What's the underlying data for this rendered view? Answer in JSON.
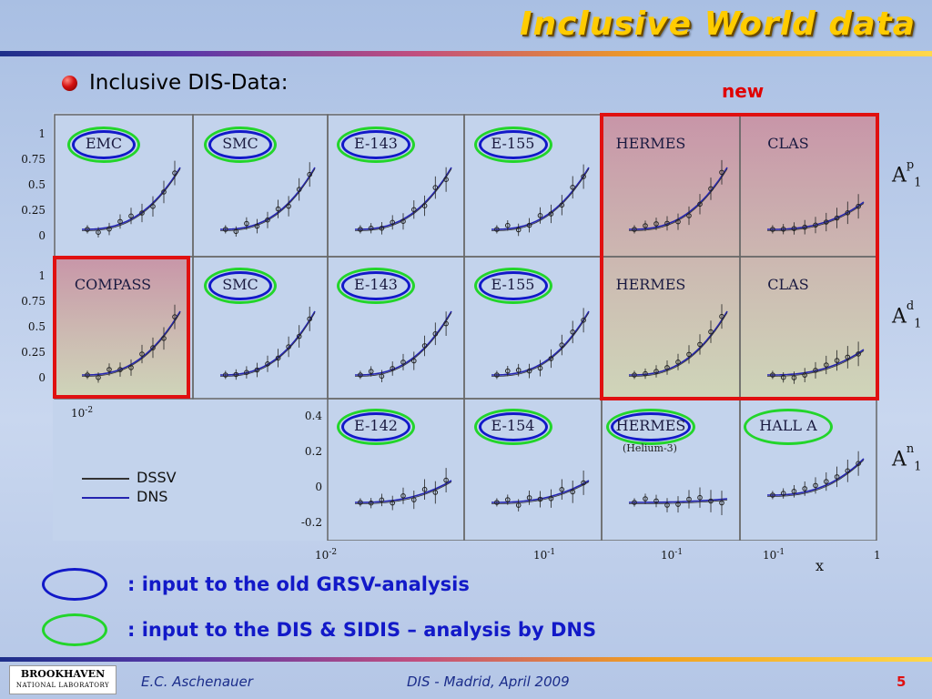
{
  "slide": {
    "title": "Inclusive World data",
    "subtitle": "Inclusive DIS-Data:",
    "new_label": "new"
  },
  "panels": {
    "row1": [
      "EMC",
      "SMC",
      "E-143",
      "E-155",
      "HERMES",
      "CLAS"
    ],
    "row2": [
      "COMPASS",
      "SMC",
      "E-143",
      "E-155",
      "HERMES",
      "CLAS"
    ],
    "row3": [
      "E-142",
      "E-154",
      "HERMES",
      "HALL A"
    ],
    "row3_note": "(Helium-3)",
    "row_labels": [
      {
        "base": "A",
        "sup": "p",
        "sub": "1"
      },
      {
        "base": "A",
        "sup": "d",
        "sub": "1"
      },
      {
        "base": "A",
        "sup": "n",
        "sub": "1"
      }
    ],
    "y_ticks_top": [
      "1",
      "0.75",
      "0.5",
      "0.25",
      "0"
    ],
    "y_ticks_mid": [
      "1",
      "0.75",
      "0.5",
      "0.25",
      "0"
    ],
    "y_ticks_bottom": [
      "0.4",
      "0.2",
      "0",
      "-0.2"
    ],
    "x_ticks_left": {
      "base": "10",
      "exp": "-2"
    },
    "x_ticks_bottom": [
      {
        "base": "10",
        "exp": "-2"
      },
      {
        "base": "10",
        "exp": "-1"
      },
      {
        "base": "10",
        "exp": "-1"
      },
      {
        "base": "10",
        "exp": "-1"
      },
      {
        "base": "1",
        "exp": ""
      }
    ],
    "x_axis_label": "x"
  },
  "legend": {
    "items": [
      {
        "label": "DSSV",
        "color": "#333333"
      },
      {
        "label": "DNS",
        "color": "#2424b0"
      }
    ]
  },
  "key": {
    "blue": {
      "text": ": input to the old GRSV-analysis",
      "color": "#1219c8"
    },
    "green": {
      "text": ": input to the DIS & SIDIS – analysis by DNS",
      "color": "#22d52a"
    }
  },
  "footer": {
    "logo_line1": "BROOKHAVEN",
    "logo_line2": "NATIONAL LABORATORY",
    "author": "E.C. Aschenauer",
    "event": "DIS - Madrid, April 2009",
    "page": "5"
  },
  "colors": {
    "title": "#ffcc00",
    "highlight": "#e01010",
    "footer_text": "#1a2c8a",
    "page_number": "#e01010"
  }
}
